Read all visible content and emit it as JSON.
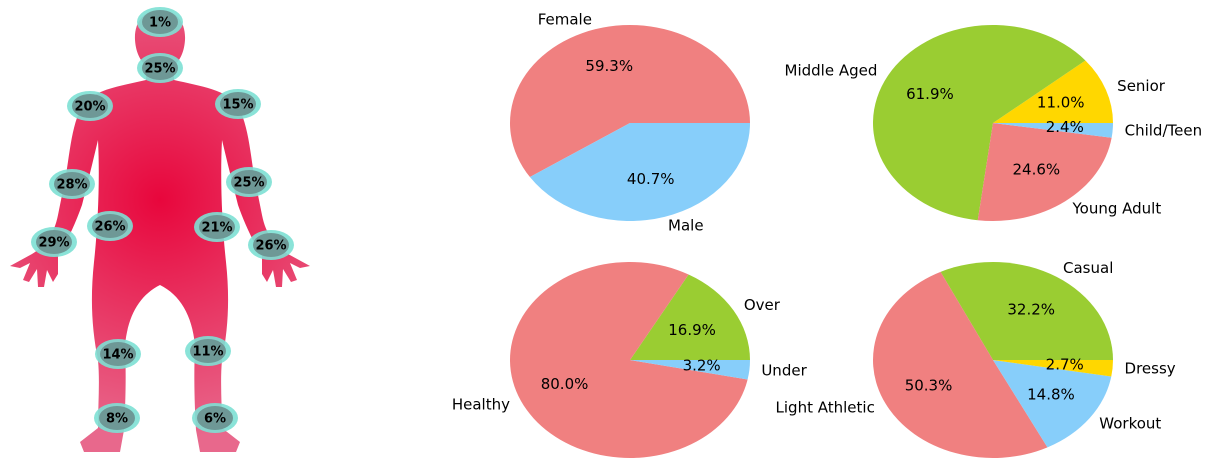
{
  "chart_data": [
    {
      "type": "bodymap",
      "values": [
        1,
        25,
        20,
        15,
        28,
        25,
        26,
        21,
        29,
        26,
        14,
        11,
        8,
        6
      ],
      "value_labels": [
        "1%",
        "25%",
        "20%",
        "15%",
        "28%",
        "25%",
        "26%",
        "21%",
        "29%",
        "26%",
        "14%",
        "11%",
        "8%",
        "6%"
      ],
      "color": "#e8063c",
      "marker_color": "#6e9896"
    },
    {
      "type": "pie",
      "categories": [
        "Female",
        "Male"
      ],
      "values": [
        59.3,
        40.7
      ],
      "value_labels": [
        "59.3%",
        "40.7%"
      ],
      "colors": [
        "#f08080",
        "#87cefa"
      ]
    },
    {
      "type": "pie",
      "categories": [
        "Senior",
        "Middle Aged",
        "Young Adult",
        "Child/Teen"
      ],
      "values": [
        11.0,
        61.9,
        24.6,
        2.4
      ],
      "value_labels": [
        "11.0%",
        "61.9%",
        "24.6%",
        "2.4%"
      ],
      "colors": [
        "#ffd700",
        "#9acd32",
        "#f08080",
        "#87cefa"
      ]
    },
    {
      "type": "pie",
      "categories": [
        "Over",
        "Healthy",
        "Under"
      ],
      "values": [
        16.9,
        80.0,
        3.2
      ],
      "value_labels": [
        "16.9%",
        "80.0%",
        "3.2%"
      ],
      "colors": [
        "#9acd32",
        "#f08080",
        "#87cefa"
      ]
    },
    {
      "type": "pie",
      "categories": [
        "Casual",
        "Light Athletic",
        "Workout",
        "Dressy"
      ],
      "values": [
        32.2,
        50.3,
        14.8,
        2.7
      ],
      "value_labels": [
        "32.2%",
        "50.3%",
        "14.8%",
        "2.7%"
      ],
      "colors": [
        "#9acd32",
        "#f08080",
        "#87cefa",
        "#ffd700"
      ]
    }
  ]
}
